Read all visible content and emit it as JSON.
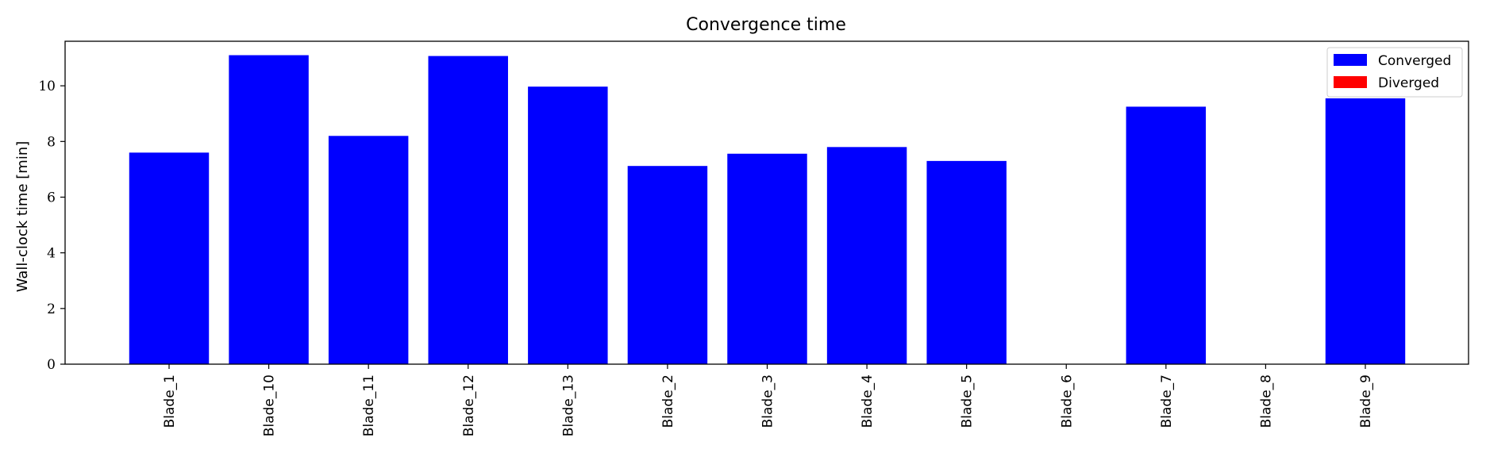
{
  "chart_data": {
    "type": "bar",
    "title": "Convergence time",
    "ylabel": "Wall-clock time [min]",
    "xlabel": "",
    "categories": [
      "Blade_1",
      "Blade_10",
      "Blade_11",
      "Blade_12",
      "Blade_13",
      "Blade_2",
      "Blade_3",
      "Blade_4",
      "Blade_5",
      "Blade_6",
      "Blade_7",
      "Blade_8",
      "Blade_9"
    ],
    "series": [
      {
        "name": "Converged",
        "color": "#0000ff",
        "values": [
          7.6,
          11.1,
          8.2,
          11.07,
          9.97,
          7.12,
          7.56,
          7.8,
          7.3,
          null,
          9.25,
          null,
          9.55
        ]
      },
      {
        "name": "Diverged",
        "color": "#ff0000",
        "values": [
          null,
          null,
          null,
          null,
          null,
          null,
          null,
          null,
          null,
          null,
          null,
          null,
          null
        ]
      }
    ],
    "yticks": [
      0,
      2,
      4,
      6,
      8,
      10
    ],
    "ylim": [
      0,
      11.6
    ],
    "legend_position": "top-right",
    "grid": false
  }
}
